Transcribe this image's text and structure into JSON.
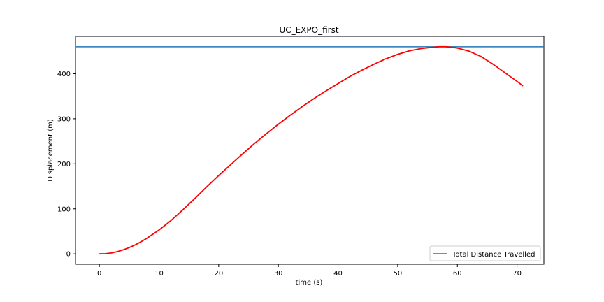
{
  "chart_data": {
    "type": "line",
    "title": "UC_EXPO_first",
    "xlabel": "time (s)",
    "ylabel": "Displacement (m)",
    "ylabel_color": "#1f77b4",
    "xlim": [
      -4,
      74.5
    ],
    "ylim": [
      -23,
      483
    ],
    "xticks": [
      0,
      10,
      20,
      30,
      40,
      50,
      60,
      70
    ],
    "yticks": [
      0,
      100,
      200,
      300,
      400
    ],
    "grid": false,
    "legend_position": "lower right",
    "series": [
      {
        "name": "",
        "color": "#ff0000",
        "x": [
          0,
          1,
          2,
          3,
          4,
          5,
          6,
          7,
          8,
          10,
          12,
          14,
          16,
          18,
          20,
          22,
          24,
          26,
          28,
          30,
          32,
          34,
          36,
          38,
          40,
          42,
          44,
          46,
          48,
          50,
          52,
          54,
          56,
          57,
          58,
          59,
          60,
          62,
          64,
          66,
          68,
          70,
          71
        ],
        "y": [
          0,
          0.5,
          2,
          5,
          9,
          14,
          20,
          27,
          35,
          53,
          74,
          98,
          123,
          149,
          174,
          198,
          222,
          245,
          267,
          288,
          308,
          327,
          345,
          362,
          378,
          394,
          408,
          421,
          433,
          443,
          451,
          456,
          459,
          460,
          460,
          459,
          457,
          450,
          438,
          421,
          402,
          383,
          373
        ]
      },
      {
        "name": "Total Distance Travelled",
        "color": "#1f77b4",
        "type": "hline",
        "y": 460
      }
    ]
  }
}
